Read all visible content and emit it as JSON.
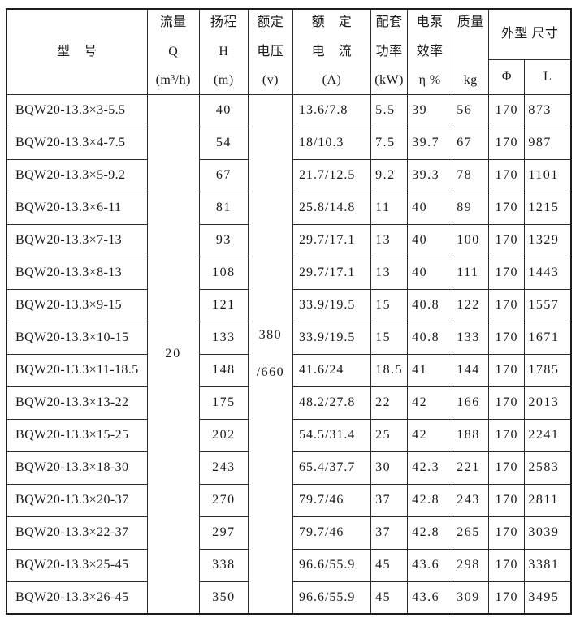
{
  "table": {
    "header": {
      "model": {
        "title": "型　号"
      },
      "flow": {
        "lines": [
          "流量",
          "Q",
          "(m³/h)"
        ]
      },
      "head": {
        "lines": [
          "扬程",
          "H",
          "(m)"
        ]
      },
      "voltage": {
        "lines": [
          "额定",
          "电压",
          "(v)"
        ]
      },
      "current": {
        "lines": [
          "额　定",
          "电　流",
          "(A)"
        ]
      },
      "power": {
        "lines": [
          "配套",
          "功率",
          "(kW)"
        ]
      },
      "efficiency": {
        "lines": [
          "电泵",
          "效率",
          "η %"
        ]
      },
      "mass": {
        "lines": [
          "质量",
          "kg"
        ]
      },
      "dimensions": {
        "title": "外型 尺寸",
        "phi": "Φ",
        "length": "L"
      }
    },
    "merged": {
      "flow_value": "20",
      "voltage_line1": "380",
      "voltage_line2": "/660"
    },
    "rows": [
      {
        "model": "BQW20-13.3×3-5.5",
        "head": "40",
        "current": "13.6/7.8",
        "power": "5.5",
        "efficiency": "39",
        "mass": "56",
        "phi": "170",
        "length": "873"
      },
      {
        "model": "BQW20-13.3×4-7.5",
        "head": "54",
        "current": "18/10.3",
        "power": "7.5",
        "efficiency": "39.7",
        "mass": "67",
        "phi": "170",
        "length": "987"
      },
      {
        "model": "BQW20-13.3×5-9.2",
        "head": "67",
        "current": "21.7/12.5",
        "power": "9.2",
        "efficiency": "39.3",
        "mass": "78",
        "phi": "170",
        "length": "1101"
      },
      {
        "model": "BQW20-13.3×6-11",
        "head": "81",
        "current": "25.8/14.8",
        "power": "11",
        "efficiency": "40",
        "mass": "89",
        "phi": "170",
        "length": "1215"
      },
      {
        "model": "BQW20-13.3×7-13",
        "head": "93",
        "current": "29.7/17.1",
        "power": "13",
        "efficiency": "40",
        "mass": "100",
        "phi": "170",
        "length": "1329"
      },
      {
        "model": "BQW20-13.3×8-13",
        "head": "108",
        "current": "29.7/17.1",
        "power": "13",
        "efficiency": "40",
        "mass": "111",
        "phi": "170",
        "length": "1443"
      },
      {
        "model": "BQW20-13.3×9-15",
        "head": "121",
        "current": "33.9/19.5",
        "power": "15",
        "efficiency": "40.8",
        "mass": "122",
        "phi": "170",
        "length": "1557"
      },
      {
        "model": "BQW20-13.3×10-15",
        "head": "133",
        "current": "33.9/19.5",
        "power": "15",
        "efficiency": "40.8",
        "mass": "133",
        "phi": "170",
        "length": "1671"
      },
      {
        "model": "BQW20-13.3×11-18.5",
        "head": "148",
        "current": "41.6/24",
        "power": "18.5",
        "efficiency": "41",
        "mass": "144",
        "phi": "170",
        "length": "1785"
      },
      {
        "model": "BQW20-13.3×13-22",
        "head": "175",
        "current": "48.2/27.8",
        "power": "22",
        "efficiency": "42",
        "mass": "166",
        "phi": "170",
        "length": "2013"
      },
      {
        "model": "BQW20-13.3×15-25",
        "head": "202",
        "current": "54.5/31.4",
        "power": "25",
        "efficiency": "42",
        "mass": "188",
        "phi": "170",
        "length": "2241"
      },
      {
        "model": "BQW20-13.3×18-30",
        "head": "243",
        "current": "65.4/37.7",
        "power": "30",
        "efficiency": "42.3",
        "mass": "221",
        "phi": "170",
        "length": "2583"
      },
      {
        "model": "BQW20-13.3×20-37",
        "head": "270",
        "current": "79.7/46",
        "power": "37",
        "efficiency": "42.8",
        "mass": "243",
        "phi": "170",
        "length": "2811"
      },
      {
        "model": "BQW20-13.3×22-37",
        "head": "297",
        "current": "79.7/46",
        "power": "37",
        "efficiency": "42.8",
        "mass": "265",
        "phi": "170",
        "length": "3039"
      },
      {
        "model": "BQW20-13.3×25-45",
        "head": "338",
        "current": "96.6/55.9",
        "power": "45",
        "efficiency": "43.6",
        "mass": "298",
        "phi": "170",
        "length": "3381"
      },
      {
        "model": "BQW20-13.3×26-45",
        "head": "350",
        "current": "96.6/55.9",
        "power": "45",
        "efficiency": "43.6",
        "mass": "309",
        "phi": "170",
        "length": "3495"
      }
    ]
  }
}
